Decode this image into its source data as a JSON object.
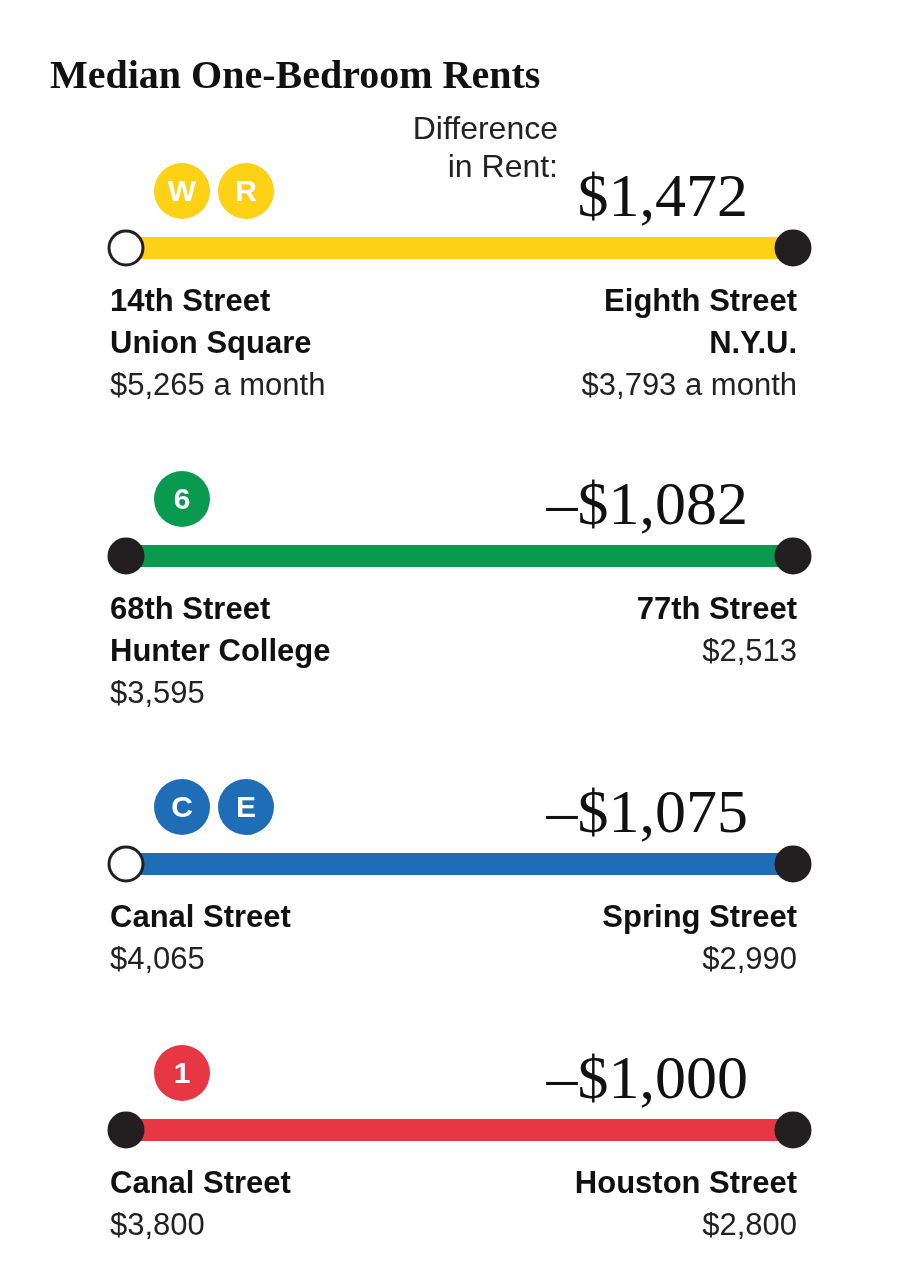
{
  "chart_data": [
    {
      "type": "other",
      "title": "Median One-Bedroom Rents",
      "subtitle": "Difference\nin Rent: $1,472",
      "annotations": [
        "W",
        "R"
      ],
      "color": "#fcd116",
      "categories": [
        "14th Street\nUnion Square",
        "Eighth Street\nN.Y.U."
      ],
      "values": [
        5265,
        3793
      ],
      "value_labels": [
        "$5,265 a month",
        "$3,793 a month"
      ],
      "colors": [
        "#ffffff",
        "#231f20"
      ]
    },
    {
      "type": "other",
      "subtitle": "–$1,082",
      "annotations": [
        "6"
      ],
      "color": "#0a9a4f",
      "categories": [
        "68th Street\nHunter College",
        "77th Street"
      ],
      "values": [
        3595,
        2513
      ],
      "value_labels": [
        "$3,595",
        "$2,513"
      ],
      "colors": [
        "#231f20",
        "#231f20"
      ]
    },
    {
      "type": "other",
      "subtitle": "–$1,075",
      "annotations": [
        "C",
        "E"
      ],
      "color": "#1f6db6",
      "categories": [
        "Canal Street",
        "Spring Street"
      ],
      "values": [
        4065,
        2990
      ],
      "value_labels": [
        "$4,065",
        "$2,990"
      ],
      "colors": [
        "#ffffff",
        "#231f20"
      ]
    },
    {
      "type": "other",
      "subtitle": "–$1,000",
      "annotations": [
        "1"
      ],
      "color": "#e83744",
      "categories": [
        "Canal Street",
        "Houston Street"
      ],
      "values": [
        3800,
        2800
      ],
      "value_labels": [
        "$3,800",
        "$2,800"
      ],
      "colors": [
        "#231f20",
        "#231f20"
      ]
    }
  ]
}
